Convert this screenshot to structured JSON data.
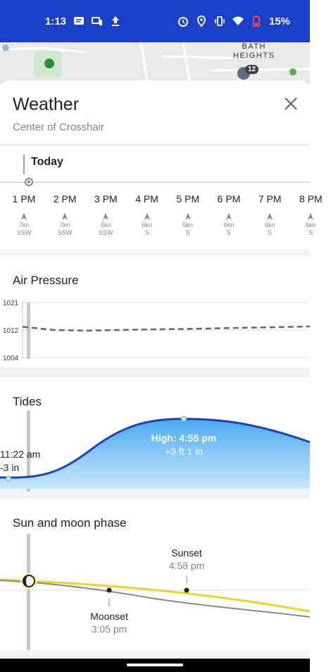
{
  "status_bar": {
    "time": "1:13",
    "battery": "15%",
    "bg_color": "#1a3fc8"
  },
  "map": {
    "label_line1": "BATH",
    "label_line2": "HEIGHTS",
    "badge": "12"
  },
  "header": {
    "title": "Weather",
    "subtitle": "Center of Crosshair",
    "close_icon": "close-icon"
  },
  "timeline": {
    "day_label": "Today",
    "hours": [
      {
        "label": "1 PM",
        "speed": "7kn",
        "direction": "SSW"
      },
      {
        "label": "2 PM",
        "speed": "7kn",
        "direction": "SSW"
      },
      {
        "label": "3 PM",
        "speed": "6kn",
        "direction": "SSW"
      },
      {
        "label": "4 PM",
        "speed": "6kn",
        "direction": "S"
      },
      {
        "label": "5 PM",
        "speed": "5kn",
        "direction": "S"
      },
      {
        "label": "6 PM",
        "speed": "6kn",
        "direction": "S"
      },
      {
        "label": "7 PM",
        "speed": "6kn",
        "direction": "S"
      },
      {
        "label": "8 PM",
        "speed": "6kn",
        "direction": "S"
      }
    ]
  },
  "air_pressure": {
    "title": "Air Pressure",
    "chart_data": {
      "type": "line",
      "y_ticks": [
        "1021",
        "1012",
        "1004"
      ],
      "ylim": [
        1004,
        1021
      ],
      "values": [
        1013.5,
        1012.5,
        1012.3,
        1012.5,
        1012.7,
        1012.8,
        1013.0,
        1013.2,
        1013.4,
        1013.6
      ]
    }
  },
  "tides": {
    "title": "Tides",
    "low_label": "11:22 am",
    "low_height": "-3 in",
    "high_label": "High: 4:55 pm",
    "high_height": "+3 ft 1 in",
    "fill_color": "#5bb8f5",
    "line_color": "#1a3fc8"
  },
  "sun_moon": {
    "title": "Sun and moon phase",
    "sunset_label": "Sunset",
    "sunset_time": "4:58 pm",
    "moonset_label": "Moonset",
    "moonset_time": "3:05 pm",
    "sun_line_color": "#f3cf2e",
    "moon_line_color": "#888888"
  }
}
